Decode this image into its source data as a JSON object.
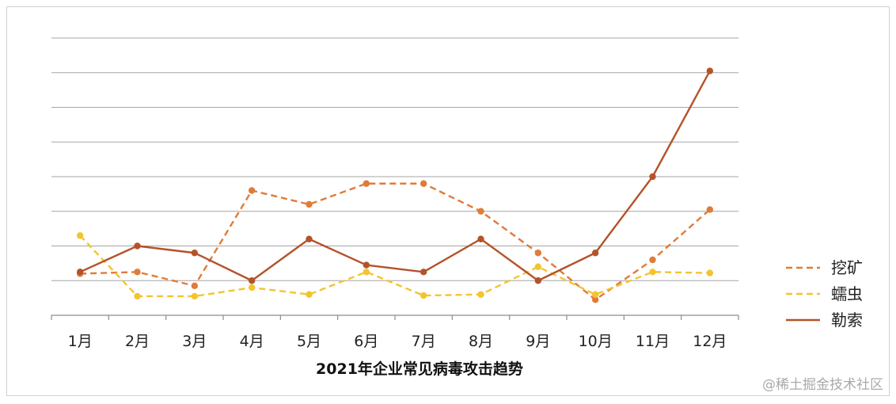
{
  "chart_data": {
    "type": "line",
    "title": "2021年企业常见病毒攻击趋势",
    "categories": [
      "1月",
      "2月",
      "3月",
      "4月",
      "5月",
      "6月",
      "7月",
      "8月",
      "9月",
      "10月",
      "11月",
      "12月"
    ],
    "ylim": [
      0,
      8
    ],
    "grid": true,
    "legend_position": "right",
    "series": [
      {
        "name": "挖矿",
        "style": "dashed",
        "color": "#E07B39",
        "values": [
          1.2,
          1.25,
          0.85,
          3.6,
          3.2,
          3.8,
          3.8,
          3.0,
          1.8,
          0.45,
          1.6,
          3.05
        ]
      },
      {
        "name": "蠕虫",
        "style": "dashed",
        "color": "#F2C530",
        "values": [
          2.3,
          0.55,
          0.55,
          0.8,
          0.6,
          1.25,
          0.57,
          0.6,
          1.4,
          0.6,
          1.25,
          1.22
        ]
      },
      {
        "name": "勒索",
        "style": "solid",
        "color": "#B4532A",
        "values": [
          1.25,
          2.0,
          1.8,
          1.0,
          2.2,
          1.45,
          1.25,
          2.2,
          1.0,
          1.8,
          4.0,
          7.05
        ]
      }
    ]
  },
  "watermark": "@稀土掘金技术社区"
}
